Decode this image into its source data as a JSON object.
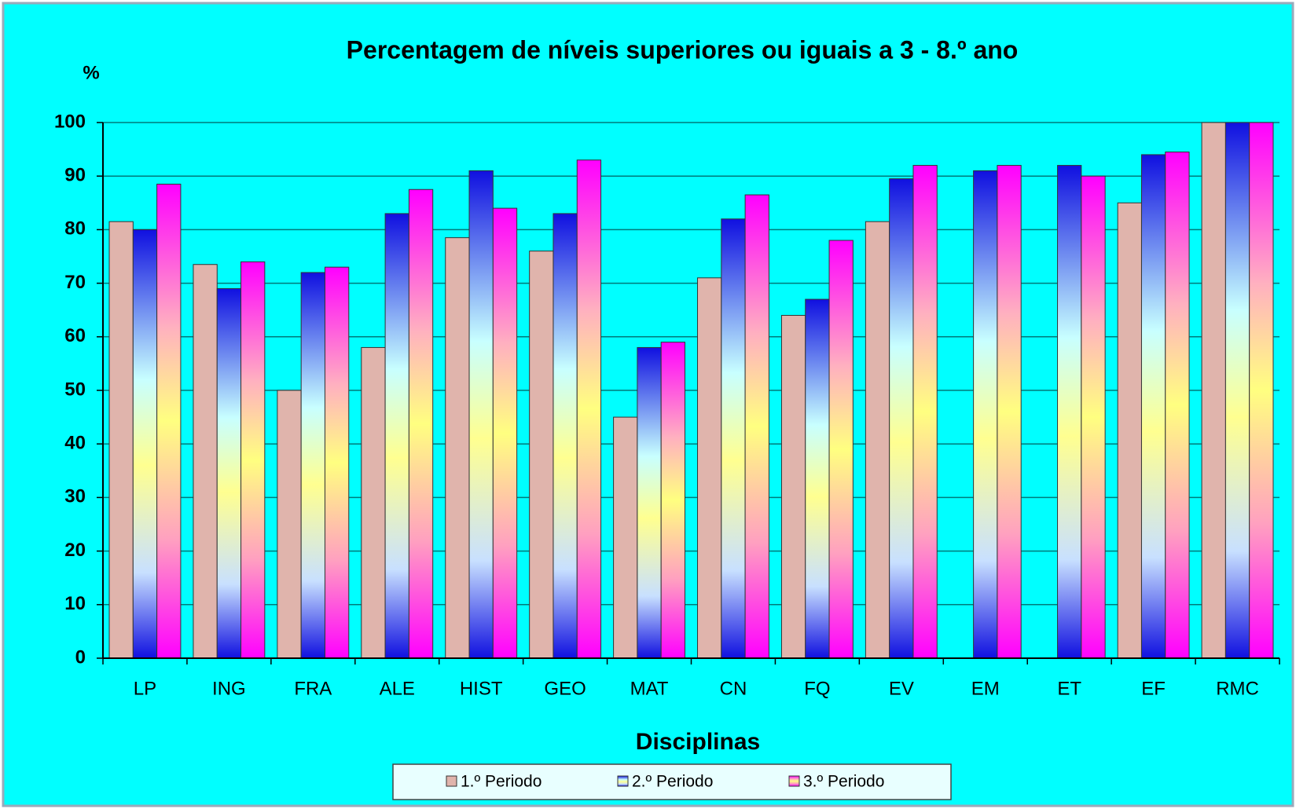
{
  "chart_data": {
    "type": "bar",
    "title": "Percentagem de níveis superiores ou iguais a 3 - 8.º ano",
    "y_label": "%",
    "x_label": "Disciplinas",
    "categories": [
      "LP",
      "ING",
      "FRA",
      "ALE",
      "HIST",
      "GEO",
      "MAT",
      "CN",
      "FQ",
      "EV",
      "EM",
      "ET",
      "EF",
      "RMC"
    ],
    "series": [
      {
        "name": "1.º Periodo",
        "color": "#e0b4ac",
        "values": [
          81.5,
          73.5,
          50,
          58,
          78.5,
          76,
          45,
          71,
          64,
          81.5,
          null,
          null,
          85,
          100
        ]
      },
      {
        "name": "2.º Periodo",
        "color": "#1010e0",
        "values": [
          80,
          69,
          72,
          83,
          91,
          83,
          58,
          82,
          67,
          89.5,
          91,
          92,
          94,
          100
        ]
      },
      {
        "name": "3.º Periodo",
        "color": "#ff00ff",
        "values": [
          88.5,
          74,
          73,
          87.5,
          84,
          93,
          59,
          86.5,
          78,
          92,
          92,
          90,
          94.5,
          100
        ]
      }
    ],
    "ylim": [
      0,
      100
    ],
    "yticks": [
      0,
      10,
      20,
      30,
      40,
      50,
      60,
      70,
      80,
      90,
      100
    ],
    "grid": true,
    "legend": "bottom"
  }
}
